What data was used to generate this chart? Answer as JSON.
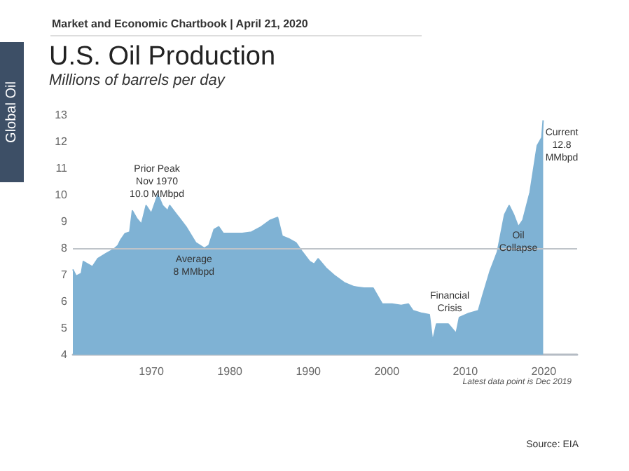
{
  "chart_data": {
    "type": "area",
    "title": "U.S. Oil Production",
    "subtitle": "Millions of barrels per day",
    "annotations": [
      "Market and Economic Chartbook | April 21, 2020",
      "Global Oil",
      "Latest data point is Dec 2019",
      "Source: EIA",
      "Prior Peak\nNov 1970\n10.0 MMbpd",
      "Current\n12.8\nMMbpd",
      "Oil\nCollapse",
      "Financial\nCrisis"
    ],
    "x": [
      "1960-01",
      "1960-06",
      "1961-02",
      "1961-05",
      "1962-07",
      "1963-03",
      "1964-04",
      "1965-03",
      "1965-10",
      "1966-02",
      "1966-09",
      "1967-04",
      "1967-08",
      "1968-03",
      "1968-10",
      "1969-05",
      "1970-01",
      "1970-11",
      "1971-06",
      "1972-02",
      "1972-05",
      "1973-04",
      "1974-06",
      "1975-09",
      "1976-10",
      "1977-05",
      "1978-01",
      "1978-08",
      "1979-03",
      "1980-05",
      "1981-08",
      "1982-10",
      "1984-01",
      "1985-03",
      "1986-02",
      "1986-09",
      "1987-07",
      "1988-06",
      "1989-04",
      "1990-03",
      "1990-10",
      "1991-04",
      "1992-04",
      "1993-06",
      "1994-08",
      "1995-11",
      "1997-02",
      "1998-04",
      "1999-06",
      "2000-09",
      "2001-11",
      "2002-10",
      "2003-05",
      "2004-07",
      "2005-06",
      "2005-11",
      "2006-05",
      "2007-11",
      "2008-11",
      "2009-04",
      "2010-06",
      "2011-09",
      "2012-04",
      "2013-03",
      "2014-02",
      "2015-01",
      "2015-08",
      "2016-03",
      "2016-10",
      "2017-05",
      "2018-04",
      "2019-03",
      "2019-10",
      "2019-12"
    ],
    "values": [
      7.2,
      6.95,
      7.05,
      7.5,
      7.3,
      7.6,
      7.8,
      7.95,
      8.1,
      8.3,
      8.55,
      8.6,
      9.4,
      9.1,
      8.9,
      9.6,
      9.3,
      10.0,
      9.6,
      9.4,
      9.6,
      9.25,
      8.8,
      8.2,
      8.0,
      8.1,
      8.7,
      8.8,
      8.55,
      8.55,
      8.55,
      8.6,
      8.8,
      9.05,
      9.15,
      8.45,
      8.35,
      8.2,
      7.85,
      7.5,
      7.4,
      7.6,
      7.25,
      6.95,
      6.7,
      6.55,
      6.5,
      6.5,
      5.9,
      5.9,
      5.85,
      5.9,
      5.65,
      5.55,
      5.5,
      4.5,
      5.15,
      5.15,
      4.8,
      5.4,
      5.55,
      5.65,
      6.25,
      7.15,
      7.85,
      9.25,
      9.6,
      9.25,
      8.8,
      9.05,
      10.1,
      11.85,
      12.15,
      12.8
    ],
    "color": "#7fb2d4",
    "xlim": [
      "1960-01",
      "2024-04"
    ],
    "xticks": [
      "1970",
      "1980",
      "1990",
      "2000",
      "2010",
      "2020"
    ],
    "ylim": [
      4,
      13
    ],
    "yticks": [
      4,
      5,
      6,
      7,
      8,
      9,
      10,
      11,
      12,
      13
    ],
    "ref_lines": [
      {
        "axis": "y",
        "value": 8,
        "label": "Average\n8 MMbpd",
        "color": "#bfc4c9"
      }
    ],
    "grid": false
  }
}
